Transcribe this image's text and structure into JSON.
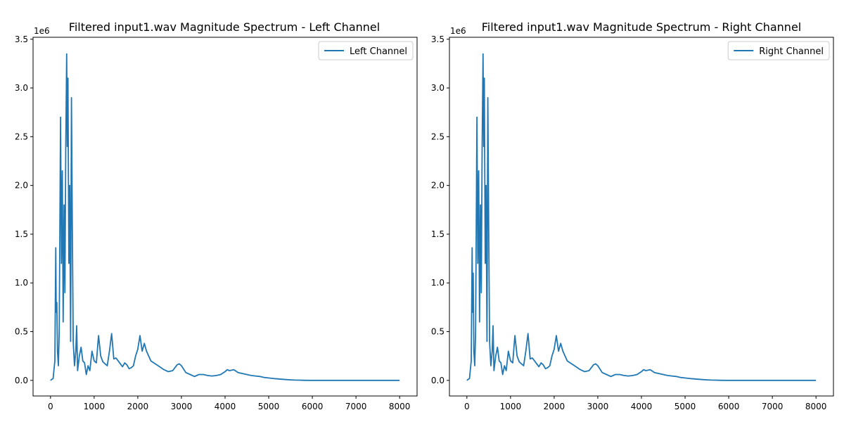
{
  "chart_data": [
    {
      "type": "line",
      "title": "Filtered input1.wav Magnitude Spectrum - Left Channel",
      "xlabel": "",
      "ylabel": "",
      "y_offset_label": "1e6",
      "xlim": [
        -400,
        8400
      ],
      "ylim": [
        -160000,
        3520000
      ],
      "x_ticks": [
        0,
        1000,
        2000,
        3000,
        4000,
        5000,
        6000,
        7000,
        8000
      ],
      "x_tick_labels": [
        "0",
        "1000",
        "2000",
        "3000",
        "4000",
        "5000",
        "6000",
        "7000",
        "8000"
      ],
      "y_ticks": [
        0,
        500000,
        1000000,
        1500000,
        2000000,
        2500000,
        3000000,
        3500000
      ],
      "y_tick_labels": [
        "0.0",
        "0.5",
        "1.0",
        "1.5",
        "2.0",
        "2.5",
        "3.0",
        "3.5"
      ],
      "grid": false,
      "legend": "top-right",
      "color": "#1f77b4",
      "series": [
        {
          "name": "Left Channel",
          "color": "#1f77b4",
          "x": [
            0,
            60,
            100,
            120,
            130,
            145,
            160,
            180,
            200,
            230,
            250,
            270,
            290,
            310,
            330,
            350,
            370,
            385,
            400,
            420,
            440,
            460,
            480,
            500,
            520,
            550,
            580,
            600,
            620,
            660,
            700,
            740,
            780,
            820,
            860,
            900,
            950,
            1000,
            1050,
            1100,
            1150,
            1200,
            1250,
            1300,
            1350,
            1400,
            1450,
            1500,
            1550,
            1600,
            1650,
            1700,
            1750,
            1800,
            1850,
            1900,
            1950,
            2000,
            2050,
            2100,
            2150,
            2200,
            2300,
            2400,
            2500,
            2600,
            2700,
            2800,
            2900,
            2950,
            3000,
            3100,
            3200,
            3300,
            3400,
            3500,
            3600,
            3700,
            3800,
            3900,
            4000,
            4050,
            4100,
            4200,
            4300,
            4400,
            4500,
            4600,
            4700,
            4800,
            4900,
            5000,
            5100,
            5200,
            5300,
            5400,
            5500,
            5600,
            5700,
            5800,
            5900,
            6000,
            6500,
            7000,
            7500,
            8000
          ],
          "y": [
            0,
            20000,
            200000,
            1360000,
            700000,
            800000,
            300000,
            150000,
            500000,
            2700000,
            1200000,
            2150000,
            600000,
            1800000,
            900000,
            2400000,
            3350000,
            2400000,
            3100000,
            1200000,
            2000000,
            400000,
            2900000,
            1600000,
            400000,
            150000,
            300000,
            560000,
            100000,
            250000,
            340000,
            200000,
            180000,
            60000,
            150000,
            100000,
            300000,
            200000,
            180000,
            460000,
            250000,
            190000,
            170000,
            150000,
            300000,
            480000,
            220000,
            230000,
            200000,
            170000,
            140000,
            180000,
            160000,
            120000,
            130000,
            150000,
            250000,
            320000,
            460000,
            300000,
            380000,
            300000,
            200000,
            170000,
            140000,
            110000,
            90000,
            100000,
            160000,
            170000,
            150000,
            80000,
            60000,
            40000,
            60000,
            60000,
            50000,
            45000,
            50000,
            60000,
            90000,
            110000,
            100000,
            110000,
            80000,
            70000,
            60000,
            50000,
            45000,
            40000,
            30000,
            25000,
            20000,
            15000,
            12000,
            8000,
            5000,
            3000,
            2000,
            1000,
            500,
            0,
            0,
            0,
            0,
            0
          ]
        }
      ]
    },
    {
      "type": "line",
      "title": "Filtered input1.wav Magnitude Spectrum - Right Channel",
      "xlabel": "",
      "ylabel": "",
      "y_offset_label": "1e6",
      "xlim": [
        -400,
        8400
      ],
      "ylim": [
        -160000,
        3520000
      ],
      "x_ticks": [
        0,
        1000,
        2000,
        3000,
        4000,
        5000,
        6000,
        7000,
        8000
      ],
      "x_tick_labels": [
        "0",
        "1000",
        "2000",
        "3000",
        "4000",
        "5000",
        "6000",
        "7000",
        "8000"
      ],
      "y_ticks": [
        0,
        500000,
        1000000,
        1500000,
        2000000,
        2500000,
        3000000,
        3500000
      ],
      "y_tick_labels": [
        "0.0",
        "0.5",
        "1.0",
        "1.5",
        "2.0",
        "2.5",
        "3.0",
        "3.5"
      ],
      "grid": false,
      "legend": "top-right",
      "color": "#1f77b4",
      "series": [
        {
          "name": "Right Channel",
          "color": "#1f77b4",
          "x": [
            0,
            60,
            100,
            120,
            130,
            145,
            160,
            180,
            200,
            230,
            250,
            270,
            290,
            310,
            330,
            350,
            370,
            385,
            400,
            420,
            440,
            460,
            480,
            500,
            520,
            550,
            580,
            600,
            620,
            660,
            700,
            740,
            780,
            820,
            860,
            900,
            950,
            1000,
            1050,
            1100,
            1150,
            1200,
            1250,
            1300,
            1350,
            1400,
            1450,
            1500,
            1550,
            1600,
            1650,
            1700,
            1750,
            1800,
            1850,
            1900,
            1950,
            2000,
            2050,
            2100,
            2150,
            2200,
            2300,
            2400,
            2500,
            2600,
            2700,
            2800,
            2900,
            2950,
            3000,
            3100,
            3200,
            3300,
            3400,
            3500,
            3600,
            3700,
            3800,
            3900,
            4000,
            4050,
            4100,
            4200,
            4300,
            4400,
            4500,
            4600,
            4700,
            4800,
            4900,
            5000,
            5100,
            5200,
            5300,
            5400,
            5500,
            5600,
            5700,
            5800,
            5900,
            6000,
            6500,
            7000,
            7500,
            8000
          ],
          "y": [
            0,
            20000,
            200000,
            1360000,
            700000,
            1100000,
            300000,
            150000,
            500000,
            2700000,
            1200000,
            2150000,
            600000,
            1800000,
            900000,
            2400000,
            3350000,
            2400000,
            3100000,
            1200000,
            2000000,
            400000,
            2900000,
            1600000,
            400000,
            150000,
            300000,
            560000,
            100000,
            250000,
            340000,
            200000,
            180000,
            60000,
            150000,
            100000,
            300000,
            200000,
            180000,
            460000,
            250000,
            190000,
            170000,
            150000,
            300000,
            480000,
            220000,
            230000,
            200000,
            170000,
            140000,
            180000,
            160000,
            120000,
            130000,
            150000,
            250000,
            320000,
            460000,
            300000,
            380000,
            300000,
            200000,
            170000,
            140000,
            110000,
            90000,
            100000,
            160000,
            170000,
            150000,
            80000,
            60000,
            40000,
            60000,
            60000,
            50000,
            45000,
            50000,
            60000,
            90000,
            110000,
            100000,
            110000,
            80000,
            70000,
            60000,
            50000,
            45000,
            40000,
            30000,
            25000,
            20000,
            15000,
            12000,
            8000,
            5000,
            3000,
            2000,
            1000,
            500,
            0,
            0,
            0,
            0,
            0
          ]
        }
      ]
    }
  ]
}
